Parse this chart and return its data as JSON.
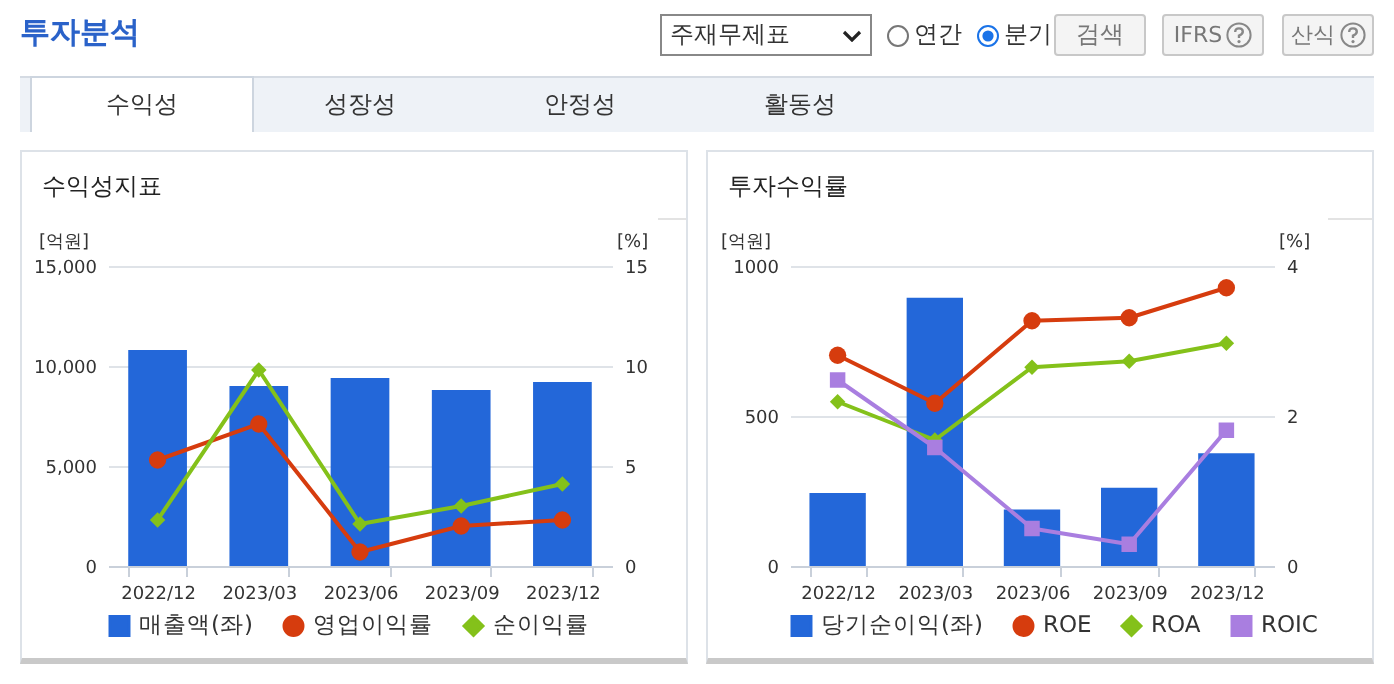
{
  "chart_data": [
    {
      "type": "other",
      "title": "투자분석",
      "annotations": [
        "주재무제표",
        "연간",
        "분기",
        "검색",
        "IFRS",
        "산식",
        "수익성",
        "성장성",
        "안정성",
        "활동성"
      ]
    },
    {
      "type": "bar",
      "title": "수익성지표",
      "categories": [
        "2022/12",
        "2023/03",
        "2023/06",
        "2023/09",
        "2023/12"
      ],
      "ylabel": "[억원]",
      "y2label": "[%]",
      "ylim": [
        0,
        15000
      ],
      "yticks": [
        {
          "value": 0,
          "label": "0"
        },
        {
          "value": 5000,
          "label": "5,000"
        },
        {
          "value": 10000,
          "label": "10,000"
        },
        {
          "value": 15000,
          "label": "15,000"
        }
      ],
      "y2lim": [
        0,
        15
      ],
      "y2ticks": [
        0,
        5,
        10,
        15
      ],
      "grid": "y",
      "legend": "bottom",
      "line_style": "solid",
      "series": [
        {
          "name": "매출액(좌)",
          "type": "bar",
          "color": "#2367d9",
          "values": [
            10800,
            9000,
            9400,
            8800,
            9200
          ]
        },
        {
          "name": "영업이익률",
          "type": "line",
          "axis": "y2",
          "marker": "circle",
          "color": "#d63c0e",
          "values": [
            5.3,
            7.1,
            0.7,
            2.0,
            2.3
          ]
        },
        {
          "name": "순이익률",
          "type": "line",
          "axis": "y2",
          "marker": "diamond",
          "color": "#84c11a",
          "values": [
            2.3,
            9.8,
            2.1,
            3.0,
            4.1
          ]
        }
      ]
    },
    {
      "type": "bar",
      "title": "투자수익률",
      "categories": [
        "2022/12",
        "2023/03",
        "2023/06",
        "2023/09",
        "2023/12"
      ],
      "ylabel": "[억원]",
      "y2label": "[%]",
      "ylim": [
        0,
        1000
      ],
      "yticks": [
        0,
        500,
        1000
      ],
      "y2lim": [
        0,
        4
      ],
      "y2ticks": [
        0,
        2,
        4
      ],
      "grid": "y",
      "legend": "bottom",
      "line_style": "solid",
      "series": [
        {
          "name": "당기순이익(좌)",
          "type": "bar",
          "color": "#2367d9",
          "values": [
            243,
            894,
            188,
            261,
            376
          ]
        },
        {
          "name": "ROE",
          "type": "line",
          "axis": "y2",
          "marker": "circle",
          "color": "#d63c0e",
          "values": [
            2.81,
            2.17,
            3.27,
            3.31,
            3.71
          ]
        },
        {
          "name": "ROA",
          "type": "line",
          "axis": "y2",
          "marker": "diamond",
          "color": "#84c11a",
          "values": [
            2.19,
            1.68,
            2.65,
            2.73,
            2.97
          ]
        },
        {
          "name": "ROIC",
          "type": "line",
          "axis": "y2",
          "marker": "square",
          "color": "#a97ee0",
          "values": [
            2.48,
            1.58,
            0.5,
            0.29,
            1.81
          ]
        }
      ]
    }
  ]
}
